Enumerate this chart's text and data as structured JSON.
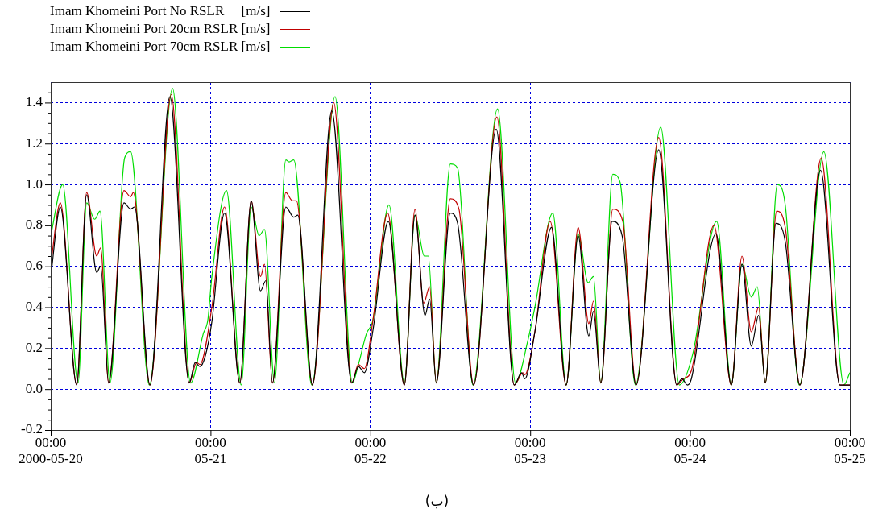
{
  "chart_data": {
    "type": "line",
    "legend": "top left",
    "grid": true,
    "marker": "none",
    "line_style": "solid",
    "annotations": [
      "(ب)"
    ],
    "xlim": [
      "2000-05-20T00:00",
      "2000-05-25T00:00"
    ],
    "xticks": [
      {
        "value": "2000-05-20T00:00",
        "label": "00:00\n2000-05-20"
      },
      {
        "value": "2000-05-21T00:00",
        "label": "00:00\n05-21"
      },
      {
        "value": "2000-05-22T00:00",
        "label": "00:00\n05-22"
      },
      {
        "value": "2000-05-23T00:00",
        "label": "00:00\n05-23"
      },
      {
        "value": "2000-05-24T00:00",
        "label": "00:00\n05-24"
      },
      {
        "value": "2000-05-25T00:00",
        "label": "00:00\n05-25"
      }
    ],
    "ylim": [
      -0.2,
      1.5
    ],
    "yticks": [
      -0.2,
      {
        "value": -0.15,
        "label": null
      },
      {
        "value": -0.1,
        "label": null
      },
      {
        "value": -0.05,
        "label": null
      },
      {
        "value": 0,
        "label": "0.0"
      },
      {
        "value": 0.05,
        "label": null
      },
      {
        "value": 0.1,
        "label": null
      },
      {
        "value": 0.15,
        "label": null
      },
      0.2,
      {
        "value": 0.25,
        "label": null
      },
      {
        "value": 0.3,
        "label": null
      },
      {
        "value": 0.35,
        "label": null
      },
      0.4,
      {
        "value": 0.45,
        "label": null
      },
      {
        "value": 0.5,
        "label": null
      },
      {
        "value": 0.55,
        "label": null
      },
      0.6,
      {
        "value": 0.65,
        "label": null
      },
      {
        "value": 0.7,
        "label": null
      },
      {
        "value": 0.75,
        "label": null
      },
      0.8,
      {
        "value": 0.85,
        "label": null
      },
      {
        "value": 0.9,
        "label": null
      },
      {
        "value": 0.95,
        "label": null
      },
      {
        "value": 1,
        "label": "1.0"
      },
      {
        "value": 1.05,
        "label": null
      },
      {
        "value": 1.1,
        "label": null
      },
      {
        "value": 1.15,
        "label": null
      },
      1.2,
      {
        "value": 1.25,
        "label": null
      },
      {
        "value": 1.3,
        "label": null
      },
      {
        "value": 1.35,
        "label": null
      },
      1.4,
      {
        "value": 1.45,
        "label": null
      }
    ],
    "series": [
      {
        "name": "Imam Khomeini Port No RSLR     [m/s]",
        "color": "#000000",
        "x": [
          "2000-05-20T00:00",
          "2000-05-20T01:27",
          "2000-05-20T03:54",
          "2000-05-20T05:24",
          "2000-05-20T06:54",
          "2000-05-20T07:30",
          "2000-05-20T08:42",
          "2000-05-20T11:00",
          "2000-05-20T12:00",
          "2000-05-20T12:36",
          "2000-05-20T14:54",
          "2000-05-20T17:54",
          "2000-05-20T20:48",
          "2000-05-20T21:42",
          "2000-05-20T22:24",
          "2000-05-20T23:12",
          "2000-05-21T00:12",
          "2000-05-21T02:06",
          "2000-05-21T04:24",
          "2000-05-21T06:06",
          "2000-05-21T07:30",
          "2000-05-21T08:18",
          "2000-05-21T09:18",
          "2000-05-21T11:18",
          "2000-05-21T12:30",
          "2000-05-21T13:06",
          "2000-05-21T15:18",
          "2000-05-21T18:12",
          "2000-05-21T21:12",
          "2000-05-21T22:12",
          "2000-05-21T23:06",
          "2000-05-22T00:24",
          "2000-05-22T02:42",
          "2000-05-22T05:06",
          "2000-05-22T06:42",
          "2000-05-22T08:12",
          "2000-05-22T08:54",
          "2000-05-22T09:54",
          "2000-05-22T12:00",
          "2000-05-22T13:06",
          "2000-05-22T15:30",
          "2000-05-22T18:54",
          "2000-05-22T21:36",
          "2000-05-22T22:42",
          "2000-05-22T23:12",
          "2000-05-23T00:42",
          "2000-05-23T03:12",
          "2000-05-23T05:24",
          "2000-05-23T07:12",
          "2000-05-23T08:48",
          "2000-05-23T09:30",
          "2000-05-23T10:36",
          "2000-05-23T12:18",
          "2000-05-23T13:48",
          "2000-05-23T15:54",
          "2000-05-23T19:18",
          "2000-05-23T22:00",
          "2000-05-23T22:48",
          "2000-05-23T23:36",
          "2000-05-24T00:12",
          "2000-05-24T03:54",
          "2000-05-24T06:12",
          "2000-05-24T07:48",
          "2000-05-24T09:12",
          "2000-05-24T10:18",
          "2000-05-24T11:18",
          "2000-05-24T12:54",
          "2000-05-24T14:18",
          "2000-05-24T16:30",
          "2000-05-24T19:36",
          "2000-05-24T22:30",
          "2000-05-25T00:00"
        ],
        "values": [
          0.55,
          0.89,
          0.02,
          0.95,
          0.57,
          0.6,
          0.03,
          0.91,
          0.88,
          0.89,
          0.02,
          1.43,
          0.03,
          0.13,
          0.11,
          0.16,
          0.33,
          0.86,
          0.03,
          0.92,
          0.48,
          0.53,
          0.03,
          0.89,
          0.84,
          0.85,
          0.02,
          1.36,
          0.03,
          0.11,
          0.08,
          0.29,
          0.82,
          0.02,
          0.85,
          0.36,
          0.44,
          0.03,
          0.86,
          0.81,
          0.02,
          1.27,
          0.02,
          0.08,
          0.05,
          0.28,
          0.79,
          0.02,
          0.75,
          0.26,
          0.38,
          0.03,
          0.82,
          0.75,
          0.02,
          1.17,
          0.02,
          0.05,
          0.02,
          0.05,
          0.76,
          0.02,
          0.61,
          0.21,
          0.36,
          0.03,
          0.81,
          0.72,
          0.02,
          1.07,
          0.02,
          0.02
        ]
      },
      {
        "name": "Imam Khomeini Port 20cm RSLR [m/s]",
        "color": "#c00000",
        "x": [
          "2000-05-20T00:00",
          "2000-05-20T01:27",
          "2000-05-20T03:54",
          "2000-05-20T05:24",
          "2000-05-20T06:54",
          "2000-05-20T07:30",
          "2000-05-20T08:42",
          "2000-05-20T11:00",
          "2000-05-20T12:00",
          "2000-05-20T12:24",
          "2000-05-20T14:54",
          "2000-05-20T18:06",
          "2000-05-20T20:48",
          "2000-05-20T21:54",
          "2000-05-20T22:24",
          "2000-05-21T00:12",
          "2000-05-21T02:06",
          "2000-05-21T04:24",
          "2000-05-21T06:06",
          "2000-05-21T07:30",
          "2000-05-21T08:06",
          "2000-05-21T09:18",
          "2000-05-21T11:18",
          "2000-05-21T12:18",
          "2000-05-21T12:54",
          "2000-05-21T15:18",
          "2000-05-21T18:30",
          "2000-05-21T21:12",
          "2000-05-21T22:12",
          "2000-05-21T23:06",
          "2000-05-22T00:24",
          "2000-05-22T02:36",
          "2000-05-22T05:06",
          "2000-05-22T06:42",
          "2000-05-22T08:00",
          "2000-05-22T08:54",
          "2000-05-22T09:54",
          "2000-05-22T12:00",
          "2000-05-22T13:18",
          "2000-05-22T15:30",
          "2000-05-22T19:00",
          "2000-05-22T21:36",
          "2000-05-22T22:54",
          "2000-05-22T23:12",
          "2000-05-23T00:42",
          "2000-05-23T03:00",
          "2000-05-23T05:24",
          "2000-05-23T07:12",
          "2000-05-23T08:48",
          "2000-05-23T09:30",
          "2000-05-23T10:36",
          "2000-05-23T12:24",
          "2000-05-23T13:54",
          "2000-05-23T15:54",
          "2000-05-23T19:18",
          "2000-05-23T22:00",
          "2000-05-23T23:00",
          "2000-05-24T00:12",
          "2000-05-24T03:36",
          "2000-05-24T06:12",
          "2000-05-24T07:48",
          "2000-05-24T09:12",
          "2000-05-24T10:18",
          "2000-05-24T11:18",
          "2000-05-24T13:00",
          "2000-05-24T14:18",
          "2000-05-24T16:30",
          "2000-05-24T19:42",
          "2000-05-24T22:30",
          "2000-05-25T00:00"
        ],
        "values": [
          0.61,
          0.91,
          0.02,
          0.96,
          0.65,
          0.69,
          0.03,
          0.97,
          0.94,
          0.96,
          0.02,
          1.44,
          0.03,
          0.13,
          0.12,
          0.4,
          0.89,
          0.03,
          0.92,
          0.55,
          0.61,
          0.03,
          0.96,
          0.92,
          0.92,
          0.02,
          1.4,
          0.03,
          0.12,
          0.1,
          0.34,
          0.86,
          0.02,
          0.88,
          0.42,
          0.5,
          0.03,
          0.93,
          0.88,
          0.02,
          1.33,
          0.02,
          0.08,
          0.07,
          0.28,
          0.82,
          0.02,
          0.79,
          0.32,
          0.43,
          0.03,
          0.88,
          0.82,
          0.02,
          1.23,
          0.02,
          0.05,
          0.09,
          0.8,
          0.02,
          0.65,
          0.28,
          0.4,
          0.03,
          0.87,
          0.79,
          0.02,
          1.13,
          0.02,
          0.02
        ]
      },
      {
        "name": "Imam Khomeini Port 70cm RSLR [m/s]",
        "color": "#00dd00",
        "x": [
          "2000-05-20T00:00",
          "2000-05-20T01:48",
          "2000-05-20T04:06",
          "2000-05-20T05:24",
          "2000-05-20T06:36",
          "2000-05-20T07:24",
          "2000-05-20T08:54",
          "2000-05-20T11:06",
          "2000-05-20T12:00",
          "2000-05-20T14:48",
          "2000-05-20T18:18",
          "2000-05-20T21:00",
          "2000-05-20T22:54",
          "2000-05-20T23:36",
          "2000-05-21T00:12",
          "2000-05-21T02:24",
          "2000-05-21T04:36",
          "2000-05-21T06:06",
          "2000-05-21T07:18",
          "2000-05-21T08:06",
          "2000-05-21T09:36",
          "2000-05-21T11:18",
          "2000-05-21T11:48",
          "2000-05-21T12:30",
          "2000-05-21T15:12",
          "2000-05-21T18:42",
          "2000-05-21T21:18",
          "2000-05-21T22:12",
          "2000-05-21T23:24",
          "2000-05-22T00:24",
          "2000-05-22T02:48",
          "2000-05-22T05:06",
          "2000-05-22T06:42",
          "2000-05-22T08:06",
          "2000-05-22T08:42",
          "2000-05-22T09:54",
          "2000-05-22T12:00",
          "2000-05-22T13:06",
          "2000-05-22T15:24",
          "2000-05-22T19:06",
          "2000-05-22T21:48",
          "2000-05-22T23:36",
          "2000-05-23T00:42",
          "2000-05-23T03:24",
          "2000-05-23T05:24",
          "2000-05-23T07:12",
          "2000-05-23T08:42",
          "2000-05-23T09:30",
          "2000-05-23T10:36",
          "2000-05-23T12:24",
          "2000-05-23T13:30",
          "2000-05-23T15:48",
          "2000-05-23T19:36",
          "2000-05-23T22:24",
          "2000-05-24T00:24",
          "2000-05-24T04:00",
          "2000-05-24T06:12",
          "2000-05-24T07:48",
          "2000-05-24T09:12",
          "2000-05-24T10:06",
          "2000-05-24T11:18",
          "2000-05-24T13:06",
          "2000-05-24T14:18",
          "2000-05-24T16:24",
          "2000-05-24T20:06",
          "2000-05-24T23:06",
          "2000-05-25T00:00"
        ],
        "values": [
          0.75,
          1.0,
          0.03,
          0.91,
          0.83,
          0.87,
          0.03,
          1.13,
          1.16,
          0.02,
          1.47,
          0.03,
          0.27,
          0.34,
          0.55,
          0.97,
          0.02,
          0.89,
          0.75,
          0.78,
          0.03,
          1.12,
          1.11,
          1.12,
          0.02,
          1.43,
          0.03,
          0.12,
          0.27,
          0.34,
          0.9,
          0.03,
          0.85,
          0.65,
          0.65,
          0.03,
          1.1,
          1.08,
          0.02,
          1.37,
          0.03,
          0.23,
          0.4,
          0.86,
          0.02,
          0.76,
          0.52,
          0.55,
          0.03,
          1.05,
          1.01,
          0.02,
          1.28,
          0.02,
          0.17,
          0.82,
          0.02,
          0.61,
          0.45,
          0.5,
          0.03,
          1.0,
          0.9,
          0.02,
          1.16,
          0.02,
          0.08
        ]
      }
    ]
  }
}
